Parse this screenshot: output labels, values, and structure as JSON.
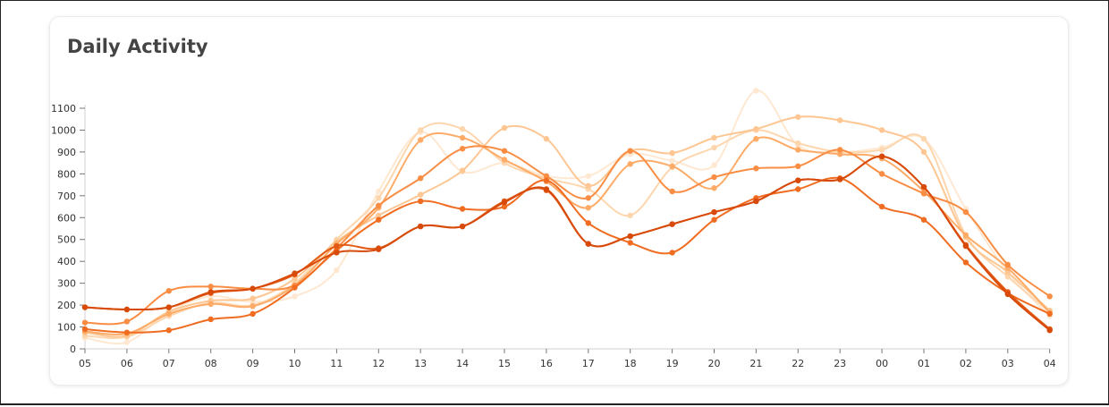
{
  "card": {
    "title": "Daily Activity"
  },
  "chart_data": {
    "type": "line",
    "title": "Daily Activity",
    "xlabel": "",
    "ylabel": "",
    "categories": [
      "05",
      "06",
      "07",
      "08",
      "09",
      "10",
      "11",
      "12",
      "13",
      "14",
      "15",
      "16",
      "17",
      "18",
      "19",
      "20",
      "21",
      "22",
      "23",
      "00",
      "01",
      "02",
      "03",
      "04"
    ],
    "yticks": [
      0,
      100,
      200,
      300,
      400,
      500,
      600,
      700,
      800,
      900,
      1000,
      1100
    ],
    "ylim": [
      0,
      1100
    ],
    "grid": false,
    "legend": "none",
    "curve": "smooth",
    "series": [
      {
        "color": "#fee8d2",
        "values": [
          50,
          30,
          170,
          240,
          215,
          240,
          360,
          720,
          990,
          810,
          850,
          790,
          790,
          890,
          860,
          840,
          1180,
          930,
          900,
          920,
          960,
          640,
          350,
          150
        ]
      },
      {
        "color": "#fdd6ae",
        "values": [
          60,
          55,
          150,
          210,
          200,
          300,
          500,
          690,
          1000,
          1005,
          850,
          780,
          730,
          610,
          830,
          920,
          1000,
          940,
          900,
          910,
          960,
          520,
          330,
          170
        ]
      },
      {
        "color": "#fdc692",
        "values": [
          75,
          60,
          170,
          220,
          230,
          320,
          490,
          610,
          705,
          815,
          1010,
          960,
          745,
          905,
          895,
          965,
          1005,
          1060,
          1045,
          1000,
          900,
          510,
          350,
          175
        ]
      },
      {
        "color": "#fdab67",
        "values": [
          80,
          70,
          160,
          205,
          195,
          290,
          480,
          645,
          955,
          965,
          865,
          765,
          645,
          845,
          835,
          735,
          960,
          910,
          890,
          870,
          720,
          520,
          370,
          165
        ]
      },
      {
        "color": "#f98d44",
        "values": [
          120,
          125,
          265,
          285,
          275,
          290,
          460,
          655,
          780,
          915,
          905,
          790,
          690,
          905,
          720,
          785,
          825,
          835,
          910,
          800,
          710,
          625,
          385,
          240
        ]
      },
      {
        "color": "#ef6c20",
        "values": [
          90,
          75,
          85,
          135,
          160,
          280,
          450,
          590,
          675,
          640,
          650,
          770,
          575,
          485,
          440,
          590,
          690,
          730,
          780,
          650,
          590,
          395,
          255,
          160
        ]
      },
      {
        "color": "#e25a14",
        "values": [
          190,
          180,
          190,
          255,
          275,
          340,
          470,
          460,
          560,
          560,
          675,
          725,
          480,
          515,
          570,
          625,
          675,
          770,
          775,
          880,
          740,
          475,
          260,
          90
        ]
      },
      {
        "color": "#d84a0a",
        "values": [
          190,
          180,
          190,
          260,
          275,
          345,
          440,
          455,
          560,
          560,
          670,
          730,
          480,
          515,
          570,
          625,
          675,
          770,
          775,
          880,
          740,
          470,
          250,
          85
        ]
      }
    ]
  }
}
